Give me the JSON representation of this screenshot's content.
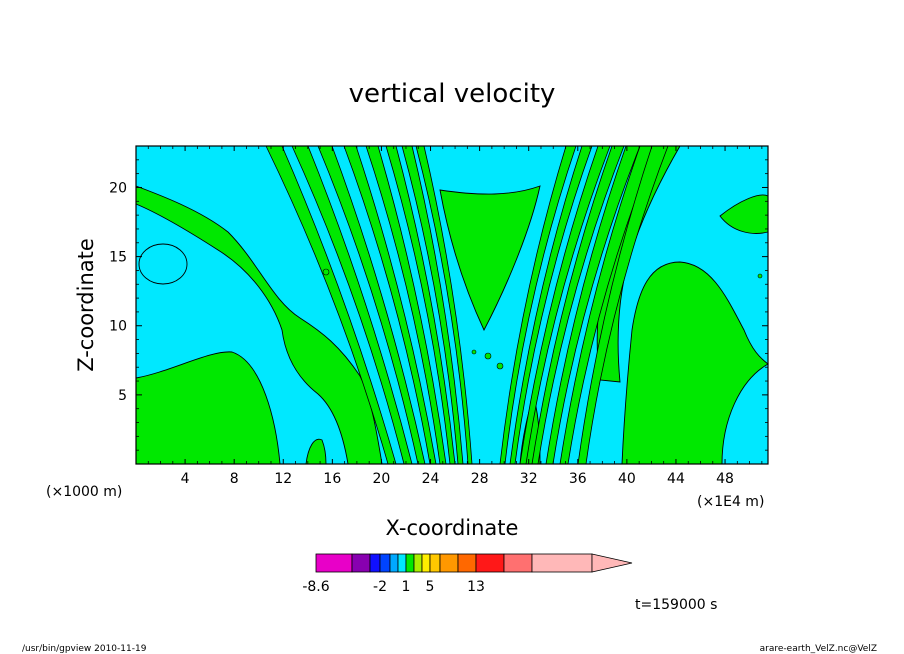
{
  "chart_data": {
    "type": "heatmap",
    "title": "vertical velocity",
    "xlabel": "X-coordinate",
    "ylabel": "Z-coordinate",
    "x_unit_left": "(×1000 m)",
    "x_unit_right": "(×1E4 m)",
    "xlim": [
      0,
      51.5
    ],
    "ylim": [
      0,
      23
    ],
    "x_ticks": [
      4,
      8,
      12,
      16,
      20,
      24,
      28,
      32,
      36,
      40,
      44,
      48
    ],
    "x_tick_labels": [
      "4",
      "8",
      "12",
      "16",
      "20",
      "24",
      "28",
      "32",
      "36",
      "40",
      "44",
      "48"
    ],
    "y_ticks": [
      5,
      10,
      15,
      20
    ],
    "y_tick_labels": [
      "5",
      "10",
      "15",
      "20"
    ],
    "field_colors": {
      "negative": "#00e8ff",
      "positive": "#00e800",
      "contour": "#000000"
    },
    "colorbar": {
      "colors": [
        "#e800c8",
        "#8800b0",
        "#1010ff",
        "#0044ff",
        "#00a8ff",
        "#00e8ff",
        "#00e800",
        "#aaee00",
        "#ffee00",
        "#ffc800",
        "#ff9800",
        "#ff6800",
        "#ff1818",
        "#ff7070",
        "#ffb8b8"
      ],
      "labels": [
        "-8.6",
        "-2",
        "1",
        "5",
        "13"
      ],
      "label_index": [
        0,
        3,
        6,
        9,
        12
      ]
    },
    "time_label": "t=159000 s"
  },
  "footer": {
    "left": "/usr/bin/gpview   2010-11-19",
    "right": "arare-earth_VelZ.nc@VelZ"
  }
}
